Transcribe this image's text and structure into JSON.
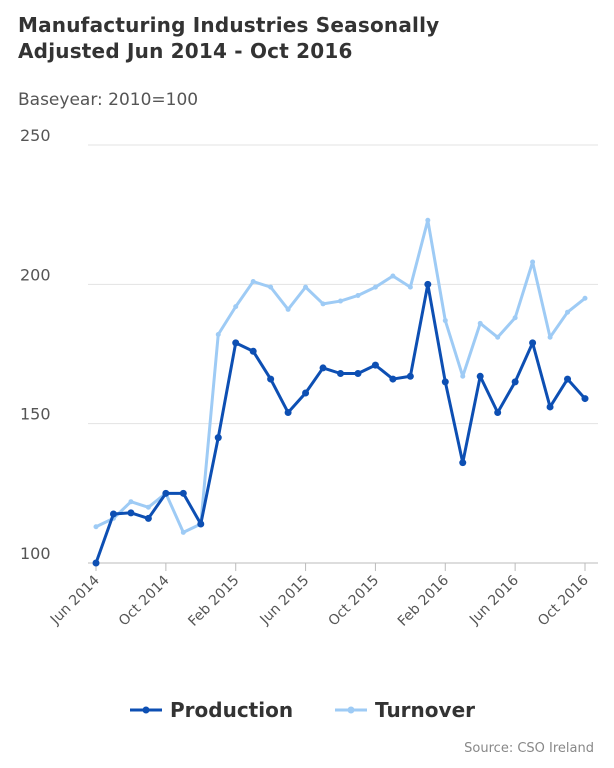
{
  "chart_data": {
    "type": "line",
    "title": "Manufacturing Industries Seasonally Adjusted Jun 2014 - Oct 2016",
    "subtitle": "Baseyear: 2010=100",
    "source": "Source: CSO Ireland",
    "categories": [
      "Jun 2014",
      null,
      null,
      null,
      "Oct 2014",
      null,
      null,
      null,
      "Feb 2015",
      null,
      null,
      null,
      "Jun 2015",
      null,
      null,
      null,
      "Oct 2015",
      null,
      null,
      null,
      "Feb 2016",
      null,
      null,
      null,
      "Jun 2016",
      null,
      null,
      null,
      "Oct 2016"
    ],
    "series": [
      {
        "name": "Production",
        "color": "#0d4fb3",
        "values": [
          100,
          117.6,
          118,
          116,
          125,
          125,
          114,
          145,
          179,
          176,
          166,
          154,
          161,
          170,
          168,
          168,
          171,
          166,
          167,
          200,
          165,
          136,
          167,
          154,
          165,
          179,
          156,
          166,
          159
        ]
      },
      {
        "name": "Turnover",
        "color": "#9ecbf5",
        "values": [
          113,
          116,
          122,
          120,
          125,
          111,
          114,
          182,
          192,
          201,
          199,
          191,
          199,
          193,
          194,
          196,
          199,
          203,
          199,
          223,
          187,
          167,
          186,
          181,
          188,
          208,
          181,
          190,
          195
        ]
      }
    ],
    "ylim": [
      100,
      250
    ],
    "yticks": [
      100,
      150,
      200,
      250
    ],
    "grid": true
  }
}
